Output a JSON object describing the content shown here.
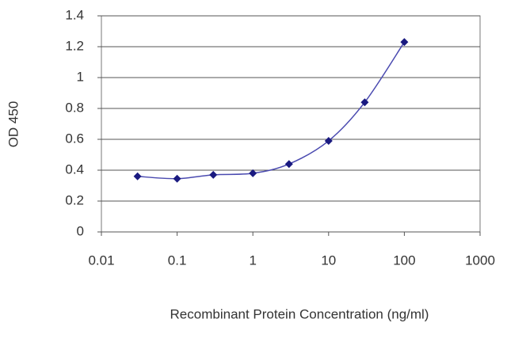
{
  "chart_data": {
    "type": "scatter",
    "x_label": "Recombinant Protein Concentration (ng/ml)",
    "y_label": "OD 450",
    "x": [
      0.03,
      0.1,
      0.3,
      1,
      3,
      10,
      30,
      100
    ],
    "series": [
      {
        "color": "#1a1a80",
        "values": [
          0.36,
          0.345,
          0.37,
          0.38,
          0.44,
          0.59,
          0.84,
          1.23
        ]
      }
    ],
    "curve_color": "#4a4ab0",
    "x_log": true,
    "xlim": [
      0.01,
      1000
    ],
    "xticks": [
      0.01,
      0.1,
      1,
      10,
      100,
      1000
    ],
    "ylim": [
      0,
      1.4
    ],
    "yticks": [
      0,
      0.2,
      0.4,
      0.6,
      0.8,
      1,
      1.2,
      1.4
    ],
    "grid": true
  }
}
